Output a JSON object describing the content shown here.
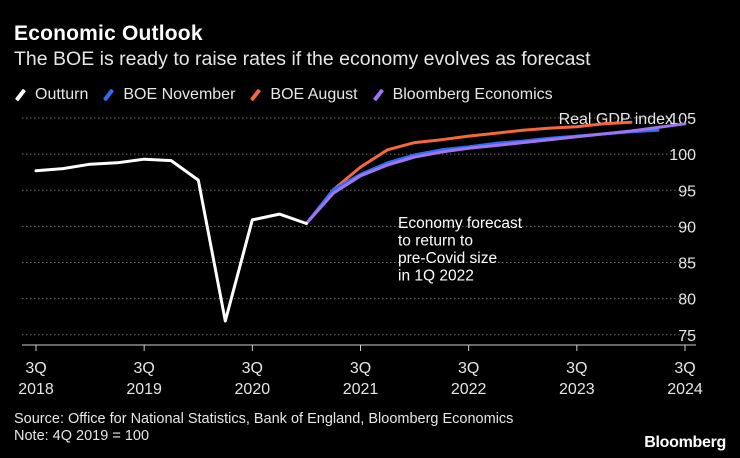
{
  "header": {
    "title": "Economic Outlook",
    "subtitle": "The BOE is ready to raise rates if the economy evolves as forecast"
  },
  "legend": [
    {
      "label": "Outturn",
      "color": "#ffffff"
    },
    {
      "label": "BOE November",
      "color": "#2f6df6"
    },
    {
      "label": "BOE August",
      "color": "#f4683c"
    },
    {
      "label": "Bloomberg Economics",
      "color": "#a073f0"
    }
  ],
  "footer": {
    "source": "Source: Office for National Statistics, Bank of England, Bloomberg Economics",
    "note": "Note: 4Q 2019 = 100",
    "brand": "Bloomberg"
  },
  "chart_data": {
    "type": "line",
    "ylabel": "Real GDP index",
    "ylim": [
      74,
      105
    ],
    "yticks": [
      75,
      80,
      85,
      90,
      95,
      100,
      105
    ],
    "xlim": [
      0,
      24
    ],
    "xticks": [
      {
        "x": 0,
        "label": [
          "3Q",
          "2018"
        ]
      },
      {
        "x": 4,
        "label": [
          "3Q",
          "2019"
        ]
      },
      {
        "x": 8,
        "label": [
          "3Q",
          "2020"
        ]
      },
      {
        "x": 12,
        "label": [
          "3Q",
          "2021"
        ]
      },
      {
        "x": 16,
        "label": [
          "3Q",
          "2022"
        ]
      },
      {
        "x": 20,
        "label": [
          "3Q",
          "2023"
        ]
      },
      {
        "x": 24,
        "label": [
          "3Q",
          "2024"
        ]
      }
    ],
    "annotation": {
      "lines": [
        "Economy forecast",
        "to return to",
        "pre-Covid size",
        "in 1Q 2022"
      ],
      "x": 13.5,
      "y": 91.5
    },
    "series": [
      {
        "name": "Outturn",
        "color": "#ffffff",
        "x": [
          0,
          1,
          2,
          3,
          4,
          5,
          6,
          7,
          8,
          9,
          10
        ],
        "y": [
          97.7,
          98.0,
          98.6,
          98.8,
          99.3,
          99.1,
          96.4,
          76.9,
          90.9,
          91.7,
          90.4
        ]
      },
      {
        "name": "BOE November",
        "color": "#2f6df6",
        "x": [
          10,
          11,
          12,
          13,
          14,
          15,
          16,
          17,
          18,
          19,
          20,
          21,
          22,
          23
        ],
        "y": [
          90.4,
          95.1,
          97.2,
          98.8,
          99.9,
          100.6,
          101.0,
          101.5,
          101.8,
          102.2,
          102.5,
          102.8,
          103.1,
          103.3
        ]
      },
      {
        "name": "BOE August",
        "color": "#f4683c",
        "x": [
          10,
          11,
          12,
          13,
          14,
          15,
          16,
          17,
          18,
          19,
          20,
          21,
          22
        ],
        "y": [
          90.4,
          95.1,
          98.2,
          100.6,
          101.6,
          102.0,
          102.5,
          102.9,
          103.3,
          103.6,
          103.8,
          104.2,
          104.4
        ]
      },
      {
        "name": "Bloomberg Economics",
        "color": "#a073f0",
        "x": [
          10,
          11,
          12,
          13,
          14,
          15,
          16,
          17,
          18,
          19,
          20,
          21,
          22,
          23,
          24
        ],
        "y": [
          90.4,
          94.6,
          97.0,
          98.5,
          99.6,
          100.3,
          100.8,
          101.2,
          101.6,
          102.0,
          102.4,
          102.8,
          103.2,
          103.7,
          104.2
        ]
      }
    ]
  }
}
